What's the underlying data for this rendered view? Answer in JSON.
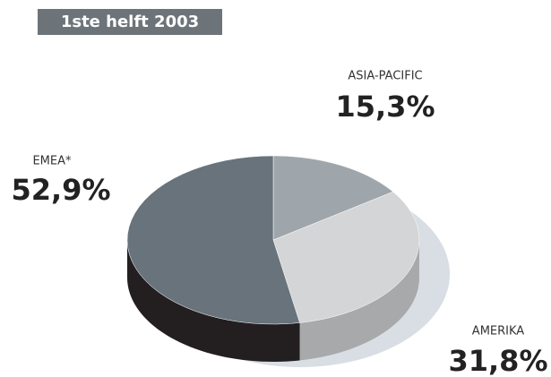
{
  "chart_data": {
    "type": "pie",
    "title": "1ste helft 2003",
    "categories": [
      "ASIA-PACIFIC",
      "AMERIKA",
      "EMEA*"
    ],
    "values": [
      15.3,
      31.8,
      52.9
    ],
    "value_labels": [
      "15,3%",
      "31,8%",
      "52,9%"
    ],
    "colors": [
      "#9fa6ab",
      "#d3d5d7",
      "#68737b"
    ],
    "side_colors": [
      "#7c8287",
      "#a7a9ab",
      "#231f20"
    ]
  }
}
